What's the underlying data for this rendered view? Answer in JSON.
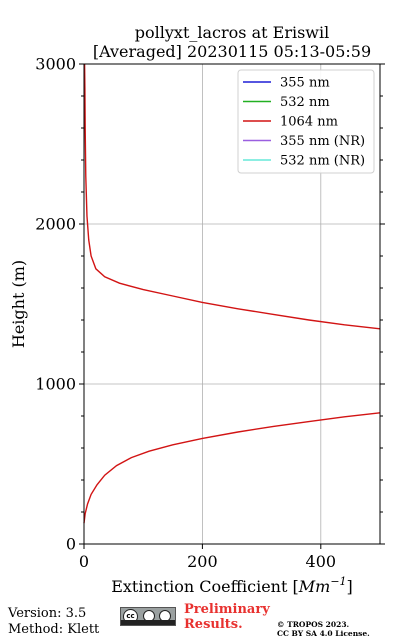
{
  "chart_data": {
    "type": "line",
    "title": "pollyxt_lacros at Eriswil",
    "subtitle": "[Averaged] 20230115 05:13-05:59",
    "xlabel": "Extinction Coefficient [",
    "xlabel_unit": "Mm",
    "xlabel_exp": "−1",
    "xlabel_close": "]",
    "ylabel": "Height (m)",
    "xlim": [
      0,
      500
    ],
    "ylim": [
      0,
      3000
    ],
    "xticks": [
      "0",
      "200",
      "400"
    ],
    "xtick_values": [
      0,
      200,
      400
    ],
    "yticks": [
      "0",
      "1000",
      "2000",
      "3000"
    ],
    "ytick_values": [
      0,
      1000,
      2000,
      3000
    ],
    "grid": true,
    "legend_position": "top-right",
    "legend": [
      {
        "name": "355 nm",
        "color": "#1f1fd6"
      },
      {
        "name": "532 nm",
        "color": "#22b022"
      },
      {
        "name": "1064 nm",
        "color": "#d21414"
      },
      {
        "name": "355 nm (NR)",
        "color": "#9a5fe0"
      },
      {
        "name": "532 nm (NR)",
        "color": "#66e8d8"
      }
    ],
    "series": [
      {
        "name": "1064 nm",
        "color": "#d21414",
        "segments": [
          {
            "x": [
              0,
              2,
              6,
              12,
              22,
              35,
              55,
              80,
              110,
              150,
              200,
              260,
              320,
              380,
              440,
              500
            ],
            "y": [
              130,
              190,
              250,
              310,
              370,
              430,
              490,
              540,
              580,
              620,
              660,
              700,
              735,
              765,
              795,
              820
            ]
          },
          {
            "x": [
              500,
              440,
              380,
              320,
              260,
              200,
              150,
              100,
              60,
              35,
              20,
              12,
              8,
              5,
              3,
              2,
              1.5,
              1
            ],
            "y": [
              1345,
              1370,
              1400,
              1435,
              1470,
              1510,
              1550,
              1590,
              1630,
              1670,
              1720,
              1800,
              1900,
              2050,
              2300,
              2600,
              2850,
              3000
            ]
          }
        ]
      }
    ]
  },
  "footer": {
    "version": "Version: 3.5",
    "method": "Method: Klett",
    "preliminary_line1": "Preliminary",
    "preliminary_line2": "Results.",
    "copyright_line1": "© TROPOS 2023.",
    "copyright_line2": "CC BY SA 4.0 License.",
    "cc_badge": "cc-by-sa-icon"
  }
}
